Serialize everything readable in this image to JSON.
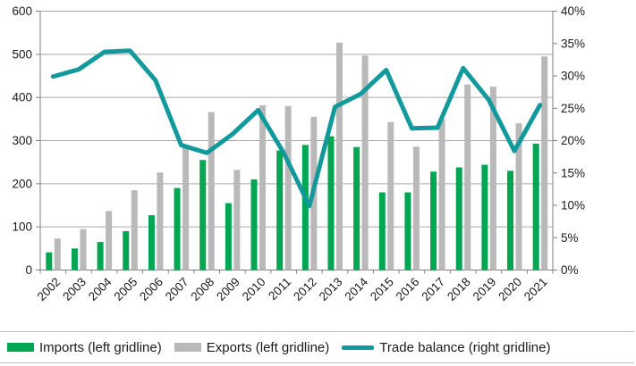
{
  "chart_data": {
    "type": "bar",
    "subtype": "combo bar + line, dual axis",
    "title": "",
    "categories": [
      "2002",
      "2003",
      "2004",
      "2005",
      "2006",
      "2007",
      "2008",
      "2009",
      "2010",
      "2011",
      "2012",
      "2013",
      "2014",
      "2015",
      "2016",
      "2017",
      "2018",
      "2019",
      "2020",
      "2021"
    ],
    "series": [
      {
        "name": "Imports (left gridline)",
        "type": "bar",
        "axis": "left",
        "color": "#00A651",
        "values": [
          41,
          50,
          65,
          90,
          127,
          190,
          255,
          155,
          210,
          277,
          290,
          310,
          285,
          180,
          180,
          228,
          238,
          244,
          230,
          293
        ]
      },
      {
        "name": "Exports (left gridline)",
        "type": "bar",
        "axis": "left",
        "color": "#B8B9B8",
        "values": [
          73,
          95,
          137,
          185,
          226,
          287,
          366,
          232,
          382,
          380,
          355,
          527,
          497,
          343,
          286,
          350,
          430,
          425,
          340,
          495
        ]
      },
      {
        "name": "Trade balance (right gridline)",
        "type": "line",
        "axis": "right",
        "color": "#12999B",
        "values": [
          29.9,
          31.0,
          33.7,
          33.9,
          29.3,
          19.3,
          18.1,
          21.0,
          24.7,
          18.1,
          9.9,
          25.2,
          27.2,
          30.9,
          21.9,
          22.0,
          31.2,
          26.3,
          18.4,
          25.5
        ]
      }
    ],
    "left_axis": {
      "min": 0,
      "max": 600,
      "step": 100,
      "tick_labels": [
        "600",
        "500",
        "400",
        "300",
        "200",
        "100",
        "0"
      ]
    },
    "right_axis": {
      "min": 0,
      "max": 40,
      "step": 5,
      "tick_labels": [
        "40%",
        "35%",
        "30%",
        "25%",
        "20%",
        "15%",
        "10%",
        "5%",
        "0%"
      ]
    },
    "grid": "horizontal gridlines at left-axis steps, on",
    "legend_position": "bottom",
    "style": {
      "gridline_color": "#A8A8A8",
      "axis_line_color": "#7F7F7F",
      "text_color": "#1A1A1A"
    }
  }
}
